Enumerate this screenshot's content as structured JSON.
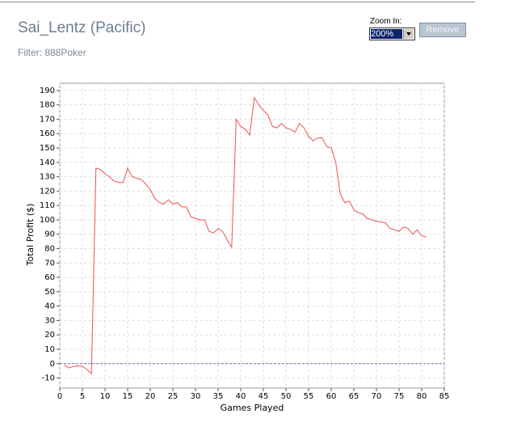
{
  "header": {
    "title": "Sai_Lentz (Pacific)",
    "filter": "Filter: 888Poker"
  },
  "controls": {
    "zoom_label": "Zoom In:",
    "zoom_value": "200%",
    "remove_button": "Remove"
  },
  "chart_data": {
    "type": "line",
    "x_label": "Games Played",
    "y_label": "Total Profit ($)",
    "x": [
      1,
      2,
      3,
      4,
      5,
      6,
      7,
      8,
      9,
      10,
      11,
      12,
      13,
      14,
      15,
      16,
      17,
      18,
      19,
      20,
      21,
      22,
      23,
      24,
      25,
      26,
      27,
      28,
      29,
      30,
      31,
      32,
      33,
      34,
      35,
      36,
      37,
      38,
      39,
      40,
      41,
      42,
      43,
      44,
      45,
      46,
      47,
      48,
      49,
      50,
      51,
      52,
      53,
      54,
      55,
      56,
      57,
      58,
      59,
      60,
      61,
      62,
      63,
      64,
      65,
      66,
      67,
      68,
      69,
      70,
      71,
      72,
      73,
      74,
      75,
      76,
      77,
      78,
      79,
      80,
      81
    ],
    "series": [
      {
        "name": "Total Profit",
        "color": "#f05050",
        "values": [
          -1,
          -3,
          -2,
          -1.5,
          -2,
          -4,
          -7,
          136,
          135,
          132,
          130,
          127,
          126,
          126,
          136,
          130,
          129,
          128,
          125,
          121,
          115,
          112,
          111,
          114,
          111,
          112,
          109,
          109,
          102,
          101,
          100,
          100,
          92,
          91,
          94,
          92,
          86,
          81,
          170,
          165,
          163,
          159,
          185,
          180,
          176,
          173,
          165,
          164,
          167,
          164,
          163,
          161,
          167,
          164,
          158,
          155,
          157,
          157,
          151,
          150,
          140,
          118,
          112,
          113,
          107,
          105,
          104,
          101,
          100,
          99,
          98.5,
          98,
          94,
          93,
          92,
          95,
          94,
          90,
          93,
          89,
          88
        ]
      }
    ],
    "xlim": [
      0,
      85
    ],
    "ylim": [
      -17,
      195
    ],
    "xticks": [
      0,
      5,
      10,
      15,
      20,
      25,
      30,
      35,
      40,
      45,
      50,
      55,
      60,
      65,
      70,
      75,
      80,
      85
    ],
    "yticks": [
      -10,
      0,
      10,
      20,
      30,
      40,
      50,
      60,
      70,
      80,
      90,
      100,
      110,
      120,
      130,
      140,
      150,
      160,
      170,
      180,
      190
    ],
    "grid": true,
    "zero_line_color": "#6a6ad0"
  }
}
